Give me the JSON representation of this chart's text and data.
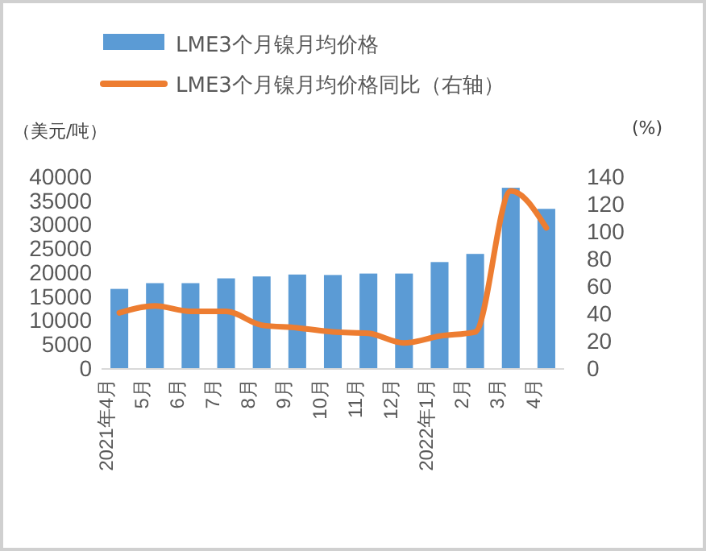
{
  "chart_data": {
    "type": "bar",
    "categories": [
      "2021年4月",
      "5月",
      "6月",
      "7月",
      "8月",
      "9月",
      "10月",
      "11月",
      "12月",
      "2022年1月",
      "2月",
      "3月",
      "4月"
    ],
    "series": [
      {
        "name": "LME3个月镍月均价格",
        "color": "#5b9bd5",
        "values": [
          16700,
          17900,
          17900,
          18900,
          19300,
          19700,
          19600,
          19900,
          19900,
          22300,
          24000,
          37800,
          33400
        ]
      },
      {
        "name": "LME3个月镍月均价格同比（右轴）",
        "type": "line",
        "axis": "y2",
        "color": "#ed7d31",
        "values": [
          41,
          46,
          42,
          42,
          32,
          30,
          27,
          26,
          19,
          24,
          27,
          130,
          103
        ]
      }
    ],
    "ylabel": "（美元/吨）",
    "y2label": "(%)",
    "ylim": [
      0,
      40000
    ],
    "yticks": [
      0,
      5000,
      10000,
      15000,
      20000,
      25000,
      30000,
      35000,
      40000
    ],
    "y2lim": [
      0,
      140
    ],
    "y2ticks": [
      0,
      20,
      40,
      60,
      80,
      100,
      120,
      140
    ],
    "legend": "top",
    "grid": false,
    "marker": "none"
  }
}
